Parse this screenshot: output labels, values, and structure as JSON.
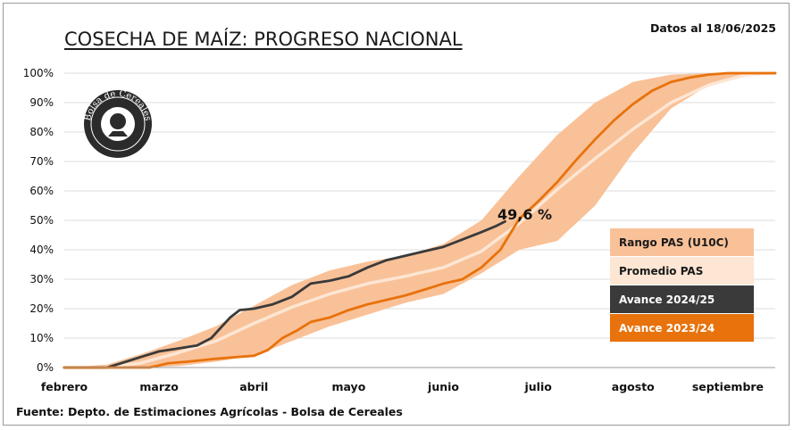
{
  "header": {
    "title": "COSECHA DE MAÍZ: PROGRESO NACIONAL",
    "date_note": "Datos al 18/06/2025"
  },
  "footer": {
    "source": "Fuente: Depto. de Estimaciones Agrícolas - Bolsa de Cereales"
  },
  "logo": {
    "text": "Bolsa de Cereales"
  },
  "colors": {
    "range": "#f9c198",
    "mean": "#fde6d3",
    "current": "#3a3a3a",
    "previous": "#e8720c",
    "grid": "#dcdcdc"
  },
  "chart_data": {
    "type": "line",
    "title": "COSECHA DE MAÍZ: PROGRESO NACIONAL",
    "x_unit": "month (0 = inicio de febrero, 7.5 = mediados de septiembre)",
    "x_months": [
      "febrero",
      "marzo",
      "abril",
      "mayo",
      "junio",
      "julio",
      "agosto",
      "septiembre"
    ],
    "y_ticks": [
      "0%",
      "10%",
      "20%",
      "30%",
      "40%",
      "50%",
      "60%",
      "70%",
      "80%",
      "90%",
      "100%"
    ],
    "ylim": [
      0,
      100
    ],
    "xlim": [
      0,
      7.5
    ],
    "annotation": "49,6 %",
    "legend": {
      "placement": "right",
      "items": [
        {
          "key": "range",
          "label": "Rango PAS (U10C)"
        },
        {
          "key": "mean",
          "label": "Promedio PAS"
        },
        {
          "key": "current",
          "label": "Avance 2024/25"
        },
        {
          "key": "previous",
          "label": "Avance 2023/24"
        }
      ]
    },
    "range": {
      "name": "Rango PAS (U10C)",
      "x": [
        0.0,
        0.45,
        0.85,
        1.2,
        1.6,
        2.0,
        2.4,
        2.8,
        3.2,
        3.6,
        4.0,
        4.4,
        4.8,
        5.2,
        5.6,
        6.0,
        6.4,
        6.8,
        7.2,
        7.5
      ],
      "upper": [
        0,
        1,
        5,
        9,
        14,
        21,
        28,
        33,
        36,
        38,
        42,
        50,
        65,
        79,
        90,
        97,
        99.5,
        100,
        100,
        100
      ],
      "lower": [
        0,
        0,
        0,
        0.5,
        2,
        4,
        9,
        14,
        18,
        22,
        25,
        32,
        40,
        43,
        55,
        73,
        88,
        96,
        99.5,
        100
      ]
    },
    "series": [
      {
        "name": "Promedio PAS",
        "x": [
          0.0,
          0.4,
          0.8,
          1.2,
          1.6,
          2.0,
          2.4,
          2.8,
          3.2,
          3.6,
          4.0,
          4.4,
          4.8,
          5.2,
          5.6,
          6.0,
          6.4,
          6.8,
          7.2,
          7.5
        ],
        "values": [
          0,
          0,
          1.5,
          5,
          9,
          15,
          20.5,
          25,
          28.5,
          31,
          34,
          39.5,
          49,
          60.5,
          71,
          81,
          90,
          96,
          99.5,
          100
        ]
      },
      {
        "name": "Avance 2024/25",
        "x": [
          0.0,
          0.45,
          0.6,
          0.8,
          1.0,
          1.2,
          1.4,
          1.55,
          1.75,
          1.85,
          2.0,
          2.2,
          2.4,
          2.6,
          2.8,
          3.0,
          3.2,
          3.4,
          3.6,
          3.8,
          4.0,
          4.2,
          4.4,
          4.55,
          4.65
        ],
        "values": [
          0,
          0,
          1.5,
          3.5,
          5.5,
          6.5,
          7.5,
          10,
          17,
          19.5,
          20,
          21.5,
          24,
          28.5,
          29.5,
          31,
          34,
          36.5,
          38,
          39.5,
          41,
          43.5,
          46,
          48,
          49.6
        ]
      },
      {
        "name": "Avance 2023/24",
        "x": [
          0.0,
          0.9,
          1.1,
          1.3,
          1.6,
          1.8,
          2.0,
          2.15,
          2.3,
          2.45,
          2.6,
          2.8,
          3.0,
          3.2,
          3.4,
          3.6,
          3.8,
          4.0,
          4.2,
          4.4,
          4.6,
          4.8,
          5.0,
          5.2,
          5.4,
          5.6,
          5.8,
          6.0,
          6.2,
          6.4,
          6.6,
          6.8,
          7.0,
          7.2,
          7.5
        ],
        "values": [
          0,
          0,
          1.5,
          2,
          3,
          3.5,
          4,
          6,
          10,
          12.5,
          15.5,
          17,
          19.5,
          21.5,
          23,
          24.5,
          26.5,
          28.5,
          30,
          34,
          40,
          50.5,
          56.5,
          63,
          70.5,
          77.5,
          84,
          89.5,
          94,
          97,
          98.5,
          99.5,
          100,
          100,
          100
        ]
      }
    ]
  }
}
